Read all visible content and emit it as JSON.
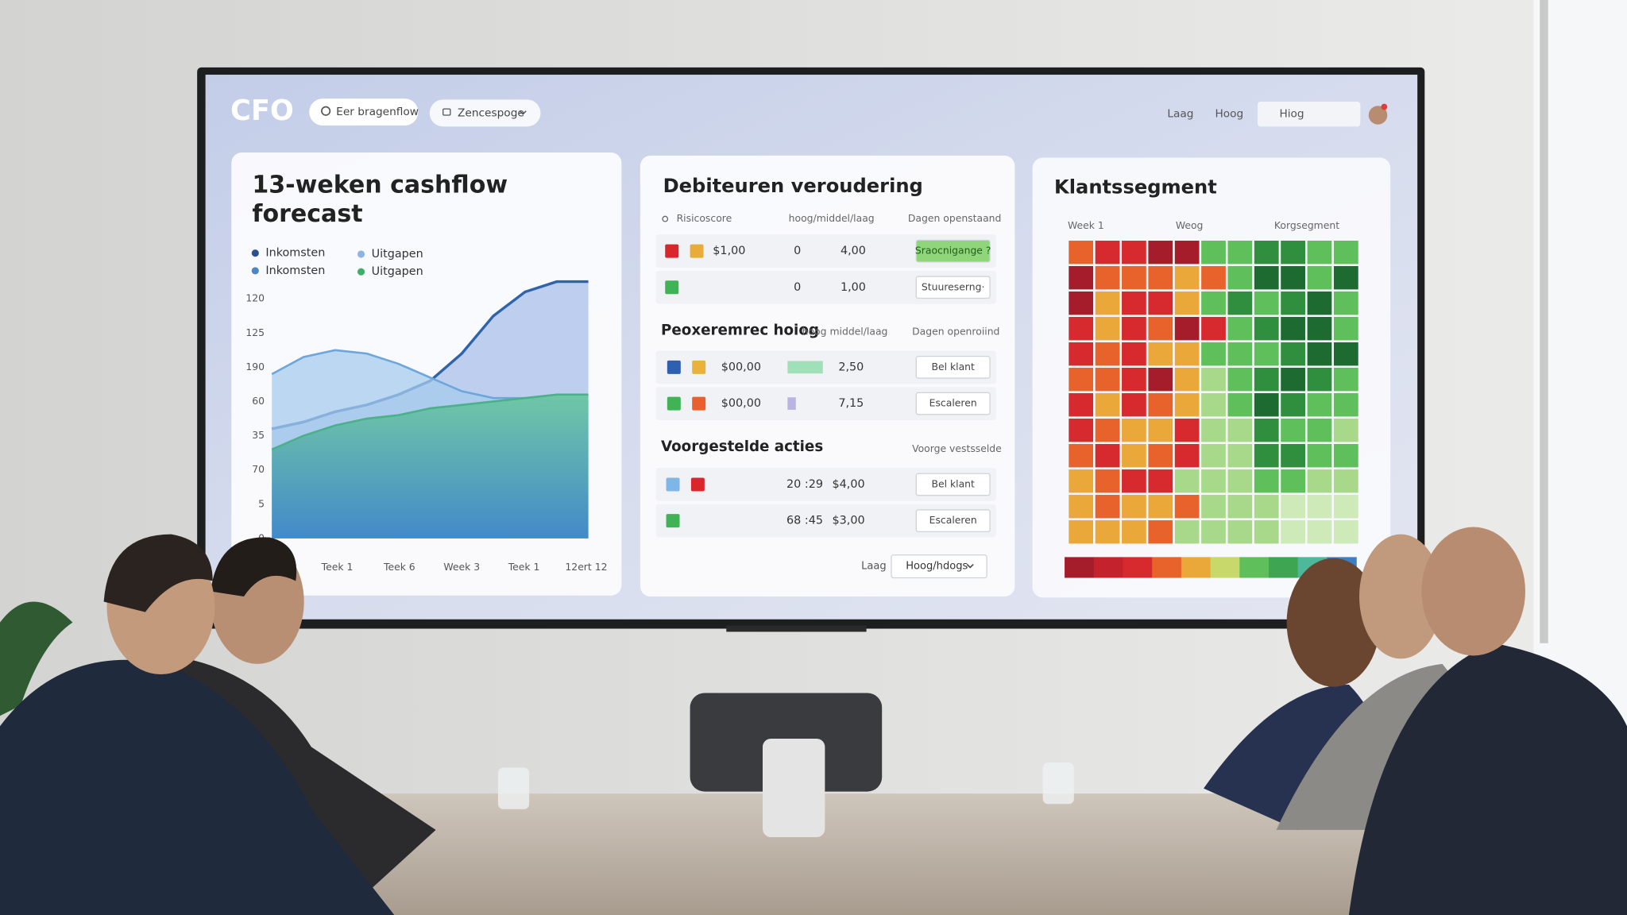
{
  "header": {
    "logo": "CFO",
    "search": "Eer bragenflow",
    "dropdown": "Zencespoge",
    "links": [
      "Laag",
      "Hoog"
    ],
    "filter": "Hiog"
  },
  "cashflow": {
    "title_lines": [
      "13-weken cashflow",
      "forecast"
    ],
    "legend": [
      {
        "label": "Inkomsten",
        "color": "#2a4f8f"
      },
      {
        "label": "Uitgapen",
        "color": "#8fb4e3"
      },
      {
        "label": "Inkomsten",
        "color": "#4d86c6"
      },
      {
        "label": "Uitgapen",
        "color": "#3fae6a"
      }
    ],
    "y_labels": [
      "0",
      "5",
      "70",
      "35",
      "60",
      "190",
      "125",
      "120"
    ],
    "x_labels": [
      "Teek 1",
      "Teek 6",
      "Week 3",
      "Teek 1",
      "12ert 12"
    ],
    "series": [
      {
        "color": "#2f64aa",
        "fill": "#a9bfe9",
        "values": [
          3.2,
          3.4,
          3.7,
          3.9,
          4.2,
          4.6,
          5.4,
          6.5,
          7.2,
          7.5,
          7.5
        ]
      },
      {
        "color": "#6ea6db",
        "fill": "#a6cbec",
        "values": [
          4.8,
          5.3,
          5.5,
          5.4,
          5.1,
          4.7,
          4.3,
          4.1,
          4.1,
          4.0,
          4.0
        ]
      },
      {
        "color": "#4cb08a",
        "fill": "#6cc7a2",
        "values": [
          2.6,
          3.0,
          3.3,
          3.5,
          3.6,
          3.8,
          3.9,
          4.0,
          4.1,
          4.2,
          4.2
        ]
      }
    ]
  },
  "aging": {
    "title": "Debiteuren veroudering",
    "sections": [
      {
        "columns": [
          "Risicoscore",
          "hoog/middel/laag",
          "Dagen openstaand"
        ],
        "rows": [
          {
            "swatches": [
              "#d9262c",
              "#e8ac3a"
            ],
            "cells": [
              "$1,00",
              "0",
              "4,00"
            ],
            "action": "Sraocnigange ?",
            "action_color": "#8fd67a"
          },
          {
            "swatches": [
              "#3fb356"
            ],
            "cells": [
              "0",
              "1,00"
            ],
            "action": "Stuureserng·"
          }
        ]
      },
      {
        "heading": "Peoxeremrec hoiog",
        "columns": [
          "hoog middel/laag",
          "Dagen openroiind"
        ],
        "rows": [
          {
            "swatches": [
              "#2f5fb0",
              "#e8b23c"
            ],
            "cells": [
              "$00,00",
              "2,50"
            ],
            "bar_color": "#9fe0b8",
            "action": "Bel klant"
          },
          {
            "swatches": [
              "#3fb356",
              "#e8612c"
            ],
            "cells": [
              "$00,00",
              "7,15"
            ],
            "bar_color": "#b9b5e3",
            "action": "Escaleren"
          }
        ]
      },
      {
        "heading": "Voorgestelde acties",
        "columns": [
          "Voorge vestsselde"
        ],
        "rows": [
          {
            "swatches": [
              "#7fb6e8",
              "#d9262c"
            ],
            "cells": [
              "20 :29",
              "$4,00"
            ],
            "action": "Bel klant"
          },
          {
            "swatches": [
              "#3fb356"
            ],
            "cells": [
              "68 :45",
              "$3,00"
            ],
            "action": "Escaleren"
          }
        ]
      }
    ],
    "footer": {
      "label": "Laag",
      "dropdown": "Hoog/hdogs"
    }
  },
  "segment": {
    "title": "Klantssegment",
    "column_labels": [
      "Week 1",
      "Weog",
      "Korgsegment"
    ],
    "palette": [
      "#a51c2a",
      "#d62a2f",
      "#e8632c",
      "#eba83a",
      "#a8d98a",
      "#5fbf5a",
      "#2f8f3f",
      "#1e6b32",
      "#cdeab8"
    ],
    "levels": [
      [
        3,
        2,
        2,
        1,
        1,
        6,
        6,
        7,
        7,
        6,
        6
      ],
      [
        1,
        3,
        3,
        3,
        4,
        3,
        6,
        8,
        8,
        6,
        8
      ],
      [
        1,
        4,
        2,
        2,
        4,
        6,
        7,
        6,
        7,
        8,
        6
      ],
      [
        2,
        4,
        2,
        3,
        1,
        2,
        6,
        7,
        8,
        8,
        6
      ],
      [
        2,
        3,
        2,
        4,
        4,
        6,
        6,
        6,
        7,
        8,
        8
      ],
      [
        3,
        3,
        2,
        1,
        4,
        5,
        6,
        7,
        8,
        7,
        6
      ],
      [
        2,
        4,
        2,
        3,
        4,
        5,
        6,
        8,
        7,
        6,
        6
      ],
      [
        2,
        3,
        4,
        4,
        2,
        5,
        5,
        7,
        6,
        6,
        5
      ],
      [
        3,
        2,
        4,
        3,
        2,
        5,
        5,
        7,
        7,
        6,
        6
      ],
      [
        4,
        3,
        2,
        2,
        5,
        5,
        5,
        6,
        6,
        5,
        5
      ],
      [
        4,
        3,
        4,
        4,
        3,
        5,
        5,
        5,
        9,
        9,
        9
      ],
      [
        4,
        4,
        4,
        3,
        5,
        5,
        5,
        5,
        9,
        9,
        9
      ]
    ],
    "scale": [
      "#a51c2a",
      "#c4222c",
      "#d62a2f",
      "#e8632c",
      "#eba83a",
      "#c8d86a",
      "#5fbf5a",
      "#3ea553",
      "#4fb89a",
      "#3d7fc4"
    ]
  }
}
